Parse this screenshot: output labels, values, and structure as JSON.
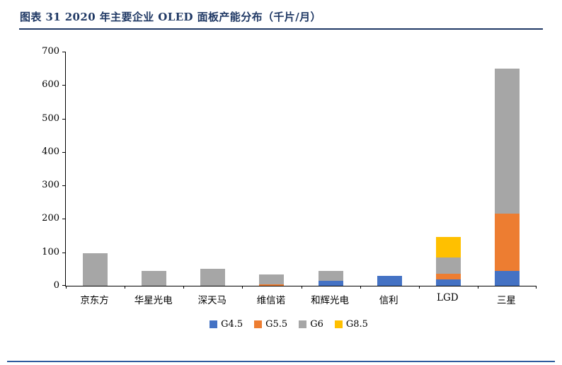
{
  "header": {
    "title": "图表 31 2020 年主要企业 OLED 面板产能分布（千片/月）"
  },
  "chart_data": {
    "type": "bar",
    "stacked": true,
    "title": "",
    "xlabel": "",
    "ylabel": "",
    "ylim": [
      0,
      700
    ],
    "ytick_step": 100,
    "grid": false,
    "legend_position": "bottom",
    "categories": [
      "京东方",
      "华星光电",
      "深天马",
      "维信诺",
      "和辉光电",
      "信利",
      "LGD",
      "三星"
    ],
    "series": [
      {
        "name": "G4.5",
        "color": "#4472C4",
        "values": [
          0,
          0,
          0,
          0,
          15,
          30,
          20,
          45
        ]
      },
      {
        "name": "G5.5",
        "color": "#ED7D31",
        "values": [
          0,
          0,
          0,
          4,
          0,
          0,
          15,
          170
        ]
      },
      {
        "name": "G6",
        "color": "#A6A6A6",
        "values": [
          98,
          45,
          50,
          30,
          30,
          0,
          50,
          435
        ]
      },
      {
        "name": "G8.5",
        "color": "#FFC000",
        "values": [
          0,
          0,
          0,
          0,
          0,
          0,
          60,
          0
        ]
      }
    ]
  },
  "colors": {
    "title_navy": "#1F3864",
    "footer_line_blue": "#2E5B9E",
    "axis_black": "#000000"
  }
}
